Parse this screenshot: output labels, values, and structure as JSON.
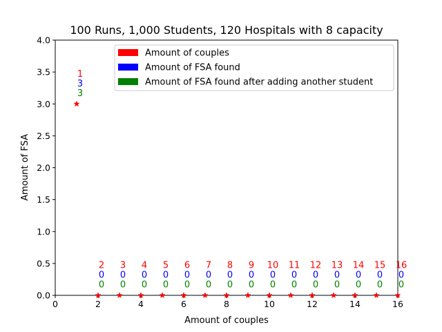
{
  "chart_data": {
    "type": "scatter",
    "title": "100 Runs, 1,000 Students, 120 Hospitals with 8 capacity",
    "xlabel": "Amount of couples",
    "ylabel": "Amount of FSA",
    "xlim": [
      0,
      16
    ],
    "ylim": [
      0,
      4.0
    ],
    "xticks": [
      0,
      2,
      4,
      6,
      8,
      10,
      12,
      14,
      16
    ],
    "xtick_labels": [
      "0",
      "2",
      "4",
      "6",
      "8",
      "10",
      "12",
      "14",
      "16"
    ],
    "yticks": [
      0,
      0.5,
      1.0,
      1.5,
      2.0,
      2.5,
      3.0,
      3.5,
      4.0
    ],
    "ytick_labels": [
      "0.0",
      "0.5",
      "1.0",
      "1.5",
      "2.0",
      "2.5",
      "3.0",
      "3.5",
      "4.0"
    ],
    "grid": false,
    "legend_position": "top-right",
    "legend": [
      {
        "label": "Amount of couples",
        "color": "#ff0000"
      },
      {
        "label": "Amount of FSA found",
        "color": "#0000ff"
      },
      {
        "label": "Amount of FSA found after adding another student",
        "color": "#008000"
      }
    ],
    "marker": "star",
    "marker_color": "#ff0000",
    "x": [
      1,
      2,
      3,
      4,
      5,
      6,
      7,
      8,
      9,
      10,
      11,
      12,
      13,
      14,
      15,
      16
    ],
    "y": [
      3,
      0,
      0,
      0,
      0,
      0,
      0,
      0,
      0,
      0,
      0,
      0,
      0,
      0,
      0,
      0
    ],
    "annotations": {
      "couples": [
        "1",
        "2",
        "3",
        "4",
        "5",
        "6",
        "7",
        "8",
        "9",
        "10",
        "11",
        "12",
        "13",
        "14",
        "15",
        "16"
      ],
      "fsa_found": [
        "3",
        "0",
        "0",
        "0",
        "0",
        "0",
        "0",
        "0",
        "0",
        "0",
        "0",
        "0",
        "0",
        "0",
        "0",
        "0"
      ],
      "fsa_after": [
        "3",
        "0",
        "0",
        "0",
        "0",
        "0",
        "0",
        "0",
        "0",
        "0",
        "0",
        "0",
        "0",
        "0",
        "0",
        "0"
      ]
    }
  }
}
